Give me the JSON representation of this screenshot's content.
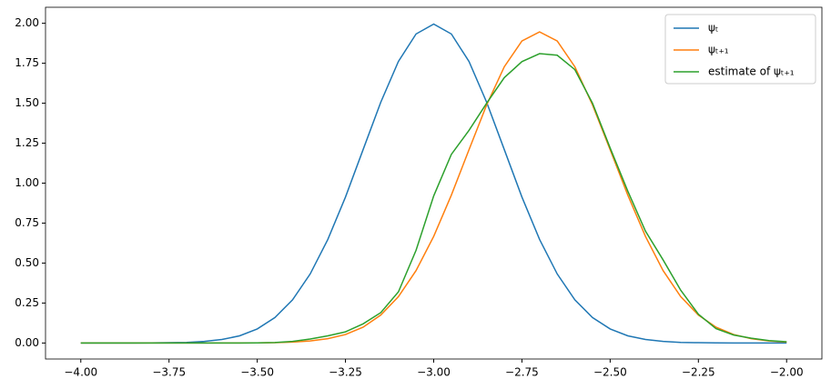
{
  "chart_data": {
    "type": "line",
    "x": [
      -4,
      -3.95,
      -3.9,
      -3.85,
      -3.8,
      -3.75,
      -3.7,
      -3.65,
      -3.6,
      -3.55,
      -3.5,
      -3.45,
      -3.4,
      -3.35,
      -3.3,
      -3.25,
      -3.2,
      -3.15,
      -3.1,
      -3.05,
      -3,
      -2.95,
      -2.9,
      -2.85,
      -2.8,
      -2.75,
      -2.7,
      -2.65,
      -2.6,
      -2.55,
      -2.5,
      -2.45,
      -2.4,
      -2.35,
      -2.3,
      -2.25,
      -2.2,
      -2.15,
      -2.1,
      -2.05,
      -2
    ],
    "series": [
      {
        "name": "ψₜ",
        "color": "#1f77b4",
        "values": [
          0,
          0,
          0,
          0,
          0.001,
          0.002,
          0.004,
          0.01,
          0.022,
          0.045,
          0.088,
          0.159,
          0.27,
          0.432,
          0.648,
          0.913,
          1.21,
          1.506,
          1.761,
          1.933,
          1.995,
          1.933,
          1.761,
          1.506,
          1.21,
          0.913,
          0.648,
          0.432,
          0.27,
          0.159,
          0.088,
          0.045,
          0.022,
          0.01,
          0.004,
          0.002,
          0.001,
          0,
          0,
          0,
          0
        ]
      },
      {
        "name": "ψₜ₊₁",
        "color": "#ff7f0e",
        "values": [
          0,
          0,
          0,
          0,
          0,
          0,
          0,
          0,
          0,
          0,
          0.001,
          0.002,
          0.006,
          0.013,
          0.027,
          0.053,
          0.099,
          0.175,
          0.29,
          0.453,
          0.667,
          0.925,
          1.209,
          1.489,
          1.728,
          1.889,
          1.946,
          1.889,
          1.728,
          1.489,
          1.209,
          0.925,
          0.667,
          0.453,
          0.29,
          0.175,
          0.099,
          0.053,
          0.027,
          0.013,
          0.006
        ]
      },
      {
        "name": "estimate of ψₜ₊₁",
        "color": "#2ca02c",
        "values": [
          0,
          0,
          0,
          0,
          0,
          0,
          0,
          0,
          0,
          0,
          0.001,
          0.003,
          0.01,
          0.025,
          0.045,
          0.07,
          0.12,
          0.19,
          0.32,
          0.58,
          0.92,
          1.18,
          1.33,
          1.5,
          1.66,
          1.76,
          1.81,
          1.8,
          1.71,
          1.5,
          1.22,
          0.95,
          0.7,
          0.52,
          0.33,
          0.18,
          0.09,
          0.05,
          0.03,
          0.015,
          0.008
        ]
      }
    ],
    "xlim": [
      -4.1,
      -1.9
    ],
    "ylim": [
      -0.1,
      2.1
    ],
    "xticks": [
      {
        "value": -4,
        "label": "−4.00"
      },
      {
        "value": -3.75,
        "label": "−3.75"
      },
      {
        "value": -3.5,
        "label": "−3.50"
      },
      {
        "value": -3.25,
        "label": "−3.25"
      },
      {
        "value": -3,
        "label": "−3.00"
      },
      {
        "value": -2.75,
        "label": "−2.75"
      },
      {
        "value": -2.5,
        "label": "−2.50"
      },
      {
        "value": -2.25,
        "label": "−2.25"
      },
      {
        "value": -2,
        "label": "−2.00"
      }
    ],
    "yticks": [
      {
        "value": 0,
        "label": "0.00"
      },
      {
        "value": 0.25,
        "label": "0.25"
      },
      {
        "value": 0.5,
        "label": "0.50"
      },
      {
        "value": 0.75,
        "label": "0.75"
      },
      {
        "value": 1,
        "label": "1.00"
      },
      {
        "value": 1.25,
        "label": "1.25"
      },
      {
        "value": 1.5,
        "label": "1.50"
      },
      {
        "value": 1.75,
        "label": "1.75"
      },
      {
        "value": 2,
        "label": "2.00"
      }
    ],
    "legend": "upper right"
  }
}
